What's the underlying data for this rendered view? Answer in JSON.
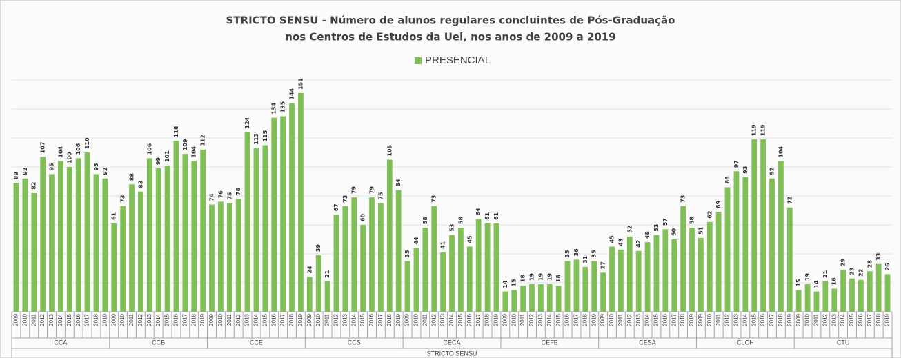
{
  "chart_data": {
    "type": "bar",
    "title": [
      "STRICTO SENSU - Número de alunos regulares concluintes de Pós-Graduação",
      "nos Centros de Estudos da Uel, nos anos de 2009 a 2019"
    ],
    "legend": "PRESENCIAL",
    "x_label": "STRICTO SENSU",
    "color": "#7fbf55",
    "ylim": [
      0,
      160
    ],
    "yticks": [
      0,
      20,
      40,
      60,
      80,
      100,
      120,
      140,
      160
    ],
    "grid": true,
    "groups": [
      {
        "name": "CCA",
        "categories": [
          "2009",
          "2010",
          "2011",
          "2012",
          "2013",
          "2014",
          "2015",
          "2016",
          "2017",
          "2018",
          "2019"
        ],
        "values": [
          89,
          92,
          82,
          107,
          95,
          104,
          100,
          106,
          110,
          95,
          92
        ]
      },
      {
        "name": "CCB",
        "categories": [
          "2009",
          "2010",
          "2011",
          "2012",
          "2013",
          "2014",
          "2015",
          "2016",
          "2017",
          "2018",
          "2019"
        ],
        "values": [
          61,
          73,
          88,
          83,
          106,
          99,
          101,
          118,
          109,
          104,
          112
        ]
      },
      {
        "name": "CCE",
        "categories": [
          "2009",
          "2010",
          "2011",
          "2012",
          "2013",
          "2014",
          "2015",
          "2016",
          "2017",
          "2018",
          "2019"
        ],
        "values": [
          74,
          76,
          75,
          78,
          124,
          113,
          115,
          134,
          135,
          144,
          151
        ]
      },
      {
        "name": "CCS",
        "categories": [
          "2009",
          "2010",
          "2011",
          "2012",
          "2013",
          "2014",
          "2015",
          "2016",
          "2017",
          "2018",
          "2019"
        ],
        "values": [
          24,
          39,
          21,
          67,
          73,
          79,
          60,
          79,
          75,
          105,
          84
        ]
      },
      {
        "name": "CECA",
        "categories": [
          "2009",
          "2010",
          "2011",
          "2012",
          "2013",
          "2014",
          "2015",
          "2016",
          "2017",
          "2018",
          "2019"
        ],
        "values": [
          35,
          44,
          58,
          73,
          41,
          53,
          58,
          45,
          64,
          61,
          61
        ]
      },
      {
        "name": "CEFE",
        "categories": [
          "2009",
          "2010",
          "2011",
          "2012",
          "2013",
          "2014",
          "2015",
          "2016",
          "2017",
          "2018",
          "2019"
        ],
        "values": [
          14,
          15,
          18,
          19,
          19,
          19,
          18,
          35,
          36,
          31,
          35
        ]
      },
      {
        "name": "CESA",
        "categories": [
          "2009",
          "2010",
          "2011",
          "2012",
          "2013",
          "2014",
          "2015",
          "2016",
          "2017",
          "2018",
          "2019"
        ],
        "values": [
          27,
          45,
          43,
          52,
          42,
          48,
          53,
          57,
          50,
          73,
          58
        ]
      },
      {
        "name": "CLCH",
        "categories": [
          "2009",
          "2010",
          "2011",
          "2012",
          "2013",
          "2014",
          "2015",
          "2016",
          "2017",
          "2018",
          "2019"
        ],
        "values": [
          51,
          62,
          69,
          86,
          97,
          93,
          119,
          119,
          92,
          104,
          72
        ]
      },
      {
        "name": "CTU",
        "categories": [
          "2009",
          "2010",
          "2011",
          "2012",
          "2013",
          "2014",
          "2015",
          "2016",
          "2017",
          "2018",
          "2019"
        ],
        "values": [
          15,
          19,
          14,
          21,
          16,
          29,
          23,
          22,
          28,
          33,
          26
        ]
      }
    ]
  }
}
